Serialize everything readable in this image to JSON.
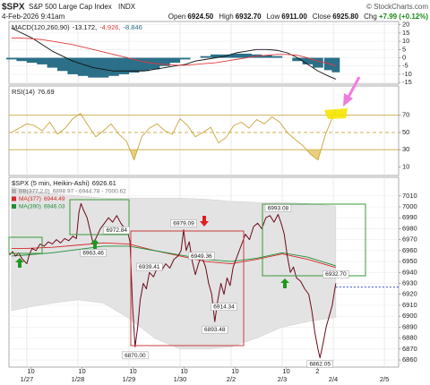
{
  "header": {
    "symbol": "$SPX",
    "name": "S&P 500 Large Cap Index",
    "exchange": "INDX",
    "source": "© StockCharts.com",
    "datetime": "4-Feb-2026 9:41am",
    "quote": [
      {
        "label": "Open",
        "value": "6924.50"
      },
      {
        "label": "High",
        "value": "6932.70"
      },
      {
        "label": "Low",
        "value": "6911.00"
      },
      {
        "label": "Close",
        "value": "6925.80"
      },
      {
        "label": "Chg",
        "value": "+7.99 (+0.12%)"
      }
    ]
  },
  "chart_data": [
    {
      "type": "line",
      "title": "MACD(120,260,90)",
      "x": [
        0.7,
        0.9,
        1.1,
        1.3,
        1.5,
        1.7,
        1.9,
        2.1,
        2.3,
        2.5,
        2.7,
        2.9,
        3.1,
        3.3,
        3.5,
        3.7,
        3.9,
        4.1,
        4.3,
        4.5,
        4.7,
        4.9,
        5.1,
        5.3,
        5.5,
        5.7,
        5.9,
        6.1,
        6.3,
        6.5,
        6.7,
        6.9,
        7.05
      ],
      "series": [
        {
          "kind": "line",
          "label": "-13.172,",
          "color": "#111111",
          "values": [
            18,
            15,
            12,
            8,
            4,
            1,
            -2,
            -4,
            -6,
            -7,
            -8,
            -8,
            -8,
            -8,
            -7,
            -6,
            -5,
            -4,
            -2,
            -1,
            0,
            1,
            3,
            4,
            5,
            5,
            4.5,
            3,
            0,
            -4,
            -8,
            -11,
            -13
          ]
        },
        {
          "kind": "line",
          "label": "-4.926,",
          "color": "#e0393e",
          "values": [
            12,
            12,
            11.5,
            11,
            10,
            9,
            8,
            6.5,
            5,
            3.5,
            2,
            0.5,
            -1,
            -2.5,
            -3.5,
            -4,
            -4.5,
            -4.5,
            -4,
            -3.5,
            -3,
            -2,
            -1,
            0,
            1,
            1.5,
            2,
            2,
            1.5,
            0,
            -2,
            -3.5,
            -4.9
          ]
        },
        {
          "kind": "bar",
          "label": "-8.846",
          "color": "#2b6f88",
          "values": [
            -1,
            -2,
            -3,
            -4,
            -6,
            -8,
            -10,
            -11,
            -12,
            -12,
            -11,
            -10,
            -9,
            -8,
            -7,
            -5,
            -3,
            -1,
            0,
            1,
            2,
            2,
            2.5,
            2.5,
            2,
            1.5,
            1,
            0,
            -2,
            -4,
            -6,
            -7.5,
            -8.8
          ]
        }
      ],
      "ylim": [
        -16,
        22
      ],
      "yticks": [
        20,
        15,
        10,
        5,
        0,
        -5,
        -10,
        -15
      ],
      "grid": true
    },
    {
      "type": "line",
      "title": "RSI(14)",
      "last": 76.69,
      "x": [
        0.7,
        0.85,
        1.0,
        1.15,
        1.3,
        1.45,
        1.6,
        1.75,
        1.9,
        2.05,
        2.2,
        2.35,
        2.5,
        2.65,
        2.8,
        2.95,
        3.1,
        3.25,
        3.4,
        3.55,
        3.7,
        3.85,
        4.0,
        4.15,
        4.3,
        4.45,
        4.6,
        4.75,
        4.9,
        5.05,
        5.2,
        5.35,
        5.5,
        5.65,
        5.8,
        5.95,
        6.1,
        6.25,
        6.4,
        6.55,
        6.7,
        6.85,
        7.05
      ],
      "series": [
        {
          "kind": "line",
          "color": "#c9a53a",
          "fill_color": "#e2bf55",
          "values": [
            50,
            55,
            60,
            58,
            52,
            62,
            48,
            55,
            66,
            72,
            58,
            45,
            52,
            60,
            48,
            40,
            18,
            45,
            55,
            60,
            52,
            48,
            66,
            58,
            45,
            50,
            56,
            38,
            44,
            58,
            62,
            55,
            65,
            60,
            68,
            62,
            50,
            42,
            35,
            25,
            18,
            48,
            77
          ]
        }
      ],
      "levels": [
        {
          "value": 70
        },
        {
          "value": 50,
          "dashed": true
        },
        {
          "value": 30
        }
      ],
      "level_color": "#c9a53a",
      "ylim": [
        0,
        104
      ],
      "yticks": [
        70,
        50,
        30,
        10
      ]
    },
    {
      "type": "line",
      "title": "$SPX (5 min, Heikin-Ashi)",
      "last": 6926.61,
      "last_color": "#2233cc",
      "series": [
        {
          "name": "BB(377,2.0)",
          "legend_values": "6898.97 - 6944.78 - 7000.62",
          "kind": "band",
          "color": "#e3e3e3",
          "x": [
            0.7,
            1.0,
            1.5,
            2.0,
            2.5,
            3.0,
            3.5,
            4.0,
            4.5,
            5.0,
            5.5,
            6.0,
            6.5,
            7.05
          ],
          "upper": [
            7018,
            7015,
            7012,
            7010,
            7008,
            7008,
            7008,
            7008,
            7007,
            7005,
            7004,
            7004,
            7003,
            7000.6
          ],
          "lower": [
            6905,
            6908,
            6912,
            6915,
            6912,
            6898,
            6880,
            6870,
            6870,
            6872,
            6880,
            6890,
            6895,
            6899
          ]
        },
        {
          "name": "MA(377)",
          "last": 6944.49,
          "kind": "line",
          "color": "#d62828",
          "x": [
            0.7,
            1.0,
            1.5,
            2.0,
            2.5,
            3.0,
            3.5,
            4.0,
            4.5,
            5.0,
            5.5,
            6.0,
            6.5,
            7.05
          ],
          "values": [
            6962,
            6962,
            6963,
            6965,
            6967,
            6966,
            6960,
            6955,
            6950,
            6948,
            6952,
            6957,
            6952,
            6944.5
          ]
        },
        {
          "name": "MA(390)",
          "last": 6946.03,
          "kind": "line",
          "color": "#1f8f3a",
          "x": [
            0.7,
            1.0,
            1.5,
            2.0,
            2.5,
            3.0,
            3.5,
            4.0,
            4.5,
            5.0,
            5.5,
            6.0,
            6.5,
            7.05
          ],
          "values": [
            6955,
            6956,
            6958,
            6961,
            6964,
            6964,
            6960,
            6956,
            6952,
            6950,
            6953,
            6958,
            6954,
            6946
          ]
        },
        {
          "kind": "line",
          "color": "#6e0a1a",
          "x": [
            0.66,
            0.72,
            0.78,
            0.84,
            0.9,
            0.96,
            1.0,
            1.04,
            1.1,
            1.18,
            1.26,
            1.34,
            1.42,
            1.5,
            1.58,
            1.66,
            1.74,
            1.82,
            1.9,
            1.97,
            2.02,
            2.06,
            2.12,
            2.18,
            2.24,
            2.3,
            2.36,
            2.44,
            2.52,
            2.6,
            2.68,
            2.76,
            2.84,
            2.92,
            2.98,
            3.02,
            3.07,
            3.12,
            3.17,
            3.22,
            3.28,
            3.34,
            3.4,
            3.48,
            3.56,
            3.64,
            3.72,
            3.8,
            3.88,
            3.96,
            4.02,
            4.07,
            4.12,
            4.18,
            4.24,
            4.3,
            4.36,
            4.42,
            4.5,
            4.56,
            4.62,
            4.68,
            4.74,
            4.8,
            4.86,
            4.92,
            4.98,
            5.04,
            5.12,
            5.2,
            5.28,
            5.36,
            5.44,
            5.52,
            5.6,
            5.68,
            5.76,
            5.84,
            5.92,
            5.98,
            6.04,
            6.1,
            6.16,
            6.22,
            6.28,
            6.36,
            6.44,
            6.52,
            6.58,
            6.64,
            6.7,
            6.74,
            6.8,
            6.86,
            6.92,
            6.98,
            7.02,
            7.05
          ],
          "values": [
            6956,
            6959,
            6955,
            6958,
            6953,
            6950,
            6948,
            6955,
            6962,
            6960,
            6966,
            6964,
            6968,
            6966,
            6970,
            6967,
            6971,
            6969,
            6973,
            6971,
            6995,
            7003,
            6996,
            6990,
            6978,
            6966,
            6972,
            6980,
            6985,
            6990,
            6986,
            6992,
            6985,
            6980,
            6976,
            6968,
            6910,
            6872,
            6890,
            6915,
            6930,
            6925,
            6940,
            6936,
            6945,
            6942,
            6948,
            6944,
            6952,
            6955,
            6960,
            6979,
            6960,
            6968,
            6950,
            6938,
            6948,
            6955,
            6945,
            6930,
            6920,
            6895,
            6915,
            6930,
            6920,
            6935,
            6928,
            6945,
            6955,
            6965,
            6975,
            6970,
            6982,
            6985,
            6980,
            6990,
            6992,
            6986,
            6993,
            6985,
            6975,
            6955,
            6940,
            6945,
            6935,
            6932,
            6925,
            6920,
            6905,
            6885,
            6870,
            6862,
            6875,
            6890,
            6900,
            6910,
            6922,
            6930
          ]
        }
      ],
      "annotations": [
        {
          "x": 2.76,
          "value": 6972.84,
          "label": "6972.84",
          "pos": "above"
        },
        {
          "x": 2.3,
          "value": 6963.46,
          "label": "6963.46",
          "pos": "below"
        },
        {
          "x": 4.07,
          "value": 6979.09,
          "label": "6979.09",
          "pos": "above"
        },
        {
          "x": 3.4,
          "value": 6939.41,
          "label": "6939.41",
          "pos": "above"
        },
        {
          "x": 4.42,
          "value": 6949.36,
          "label": "6949.36",
          "pos": "above"
        },
        {
          "x": 5.92,
          "value": 6993.08,
          "label": "6993.08",
          "pos": "above"
        },
        {
          "x": 7.05,
          "value": 6932.7,
          "label": "6932.70",
          "pos": "above"
        },
        {
          "x": 4.86,
          "value": 6914.34,
          "label": "6914.34",
          "pos": "below"
        },
        {
          "x": 4.68,
          "value": 6893.48,
          "label": "6893.48",
          "pos": "below"
        },
        {
          "x": 3.12,
          "value": 6870,
          "label": "6870.00",
          "pos": "below"
        },
        {
          "x": 6.74,
          "value": 6862.05,
          "label": "6862.05",
          "pos": "below"
        }
      ],
      "xlim": [
        0.65,
        8.28
      ],
      "xticks": [
        {
          "value": 1,
          "label": "1/27"
        },
        {
          "value": 2,
          "label": "1/28"
        },
        {
          "value": 3,
          "label": "1/29"
        },
        {
          "value": 4,
          "label": "1/30"
        },
        {
          "value": 5,
          "label": "2/2"
        },
        {
          "value": 6,
          "label": "2/3"
        },
        {
          "value": 7,
          "label": "2/4"
        },
        {
          "value": 8,
          "label": "2/5"
        }
      ],
      "xticks_hour": [
        {
          "value": 1.08,
          "label": "10"
        },
        {
          "value": 2.08,
          "label": "10"
        },
        {
          "value": 3.08,
          "label": "10"
        },
        {
          "value": 4.08,
          "label": "10"
        },
        {
          "value": 5.08,
          "label": "10"
        },
        {
          "value": 6.08,
          "label": "10"
        },
        {
          "value": 6.69,
          "label": "2"
        }
      ],
      "ylim": [
        6853.5,
        7027
      ],
      "yticks": [
        7010,
        7000,
        6990,
        6980,
        6970,
        6960,
        6950,
        6940,
        6930,
        6920,
        6910,
        6900,
        6890,
        6880,
        6870,
        6860
      ],
      "grid": true
    }
  ]
}
